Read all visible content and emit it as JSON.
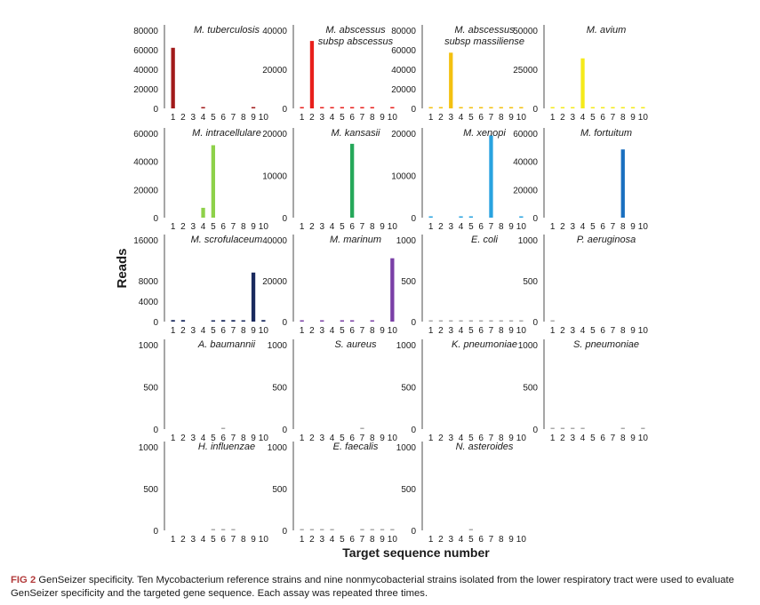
{
  "figure": {
    "ylabel": "Reads",
    "xlabel": "Target sequence number",
    "caption_label": "FIG 2",
    "caption_text": "GenSeizer specificity. Ten Mycobacterium reference strains and nine nonmycobacterial strains isolated from the lower respiratory tract were used to evaluate GenSeizer specificity and the targeted gene sequence. Each assay was repeated three times."
  },
  "chart_data": [
    {
      "type": "bar",
      "title": [
        "M. tuberculosis"
      ],
      "categories": [
        "1",
        "2",
        "3",
        "4",
        "5",
        "6",
        "7",
        "8",
        "9",
        "10"
      ],
      "values": [
        62000,
        0,
        0,
        1200,
        0,
        0,
        0,
        0,
        1000,
        0
      ],
      "ylim": [
        0,
        80000
      ],
      "yticks": [
        "0",
        "20000",
        "40000",
        "60000",
        "80000"
      ],
      "color": "#a11a1a"
    },
    {
      "type": "bar",
      "title": [
        "M. abscessus",
        "subsp abscessus"
      ],
      "categories": [
        "1",
        "2",
        "3",
        "4",
        "5",
        "6",
        "7",
        "8",
        "9",
        "10"
      ],
      "values": [
        400,
        34500,
        400,
        400,
        400,
        400,
        300,
        300,
        0,
        400
      ],
      "ylim": [
        0,
        40000
      ],
      "yticks": [
        "0",
        "20000",
        "40000"
      ],
      "color": "#e8201c"
    },
    {
      "type": "bar",
      "title": [
        "M. abscessus",
        "subsp massiliense"
      ],
      "categories": [
        "1",
        "2",
        "3",
        "4",
        "5",
        "6",
        "7",
        "8",
        "9",
        "10"
      ],
      "values": [
        300,
        300,
        57000,
        300,
        300,
        300,
        300,
        300,
        300,
        300
      ],
      "ylim": [
        0,
        80000
      ],
      "yticks": [
        "0",
        "20000",
        "40000",
        "60000",
        "80000"
      ],
      "color": "#f3c010"
    },
    {
      "type": "bar",
      "title": [
        "M. avium"
      ],
      "categories": [
        "1",
        "2",
        "3",
        "4",
        "5",
        "6",
        "7",
        "8",
        "9",
        "10"
      ],
      "values": [
        200,
        200,
        200,
        32000,
        200,
        200,
        200,
        200,
        200,
        200
      ],
      "ylim": [
        0,
        50000
      ],
      "yticks": [
        "0",
        "25000",
        "50000"
      ],
      "color": "#f5ea1a"
    },
    {
      "type": "bar",
      "title": [
        "M. intracellulare"
      ],
      "categories": [
        "1",
        "2",
        "3",
        "4",
        "5",
        "6",
        "7",
        "8",
        "9",
        "10"
      ],
      "values": [
        0,
        0,
        0,
        7000,
        51500,
        0,
        0,
        0,
        0,
        0
      ],
      "ylim": [
        0,
        60000
      ],
      "yticks": [
        "0",
        "20000",
        "40000",
        "60000"
      ],
      "color": "#8ed14a"
    },
    {
      "type": "bar",
      "title": [
        "M. kansasii"
      ],
      "categories": [
        "1",
        "2",
        "3",
        "4",
        "5",
        "6",
        "7",
        "8",
        "9",
        "10"
      ],
      "values": [
        0,
        0,
        0,
        0,
        0,
        17500,
        0,
        0,
        0,
        0
      ],
      "ylim": [
        0,
        20000
      ],
      "yticks": [
        "0",
        "10000",
        "20000"
      ],
      "color": "#26a85a"
    },
    {
      "type": "bar",
      "title": [
        "M. xenopi"
      ],
      "categories": [
        "1",
        "2",
        "3",
        "4",
        "5",
        "6",
        "7",
        "8",
        "9",
        "10"
      ],
      "values": [
        300,
        0,
        0,
        200,
        200,
        0,
        19500,
        0,
        0,
        200
      ],
      "ylim": [
        0,
        20000
      ],
      "yticks": [
        "0",
        "10000",
        "20000"
      ],
      "color": "#29a3e0"
    },
    {
      "type": "bar",
      "title": [
        "M. fortuitum"
      ],
      "categories": [
        "1",
        "2",
        "3",
        "4",
        "5",
        "6",
        "7",
        "8",
        "9",
        "10"
      ],
      "values": [
        0,
        0,
        0,
        0,
        0,
        0,
        0,
        48500,
        0,
        0
      ],
      "ylim": [
        0,
        60000
      ],
      "yticks": [
        "0",
        "20000",
        "40000",
        "60000"
      ],
      "color": "#1a6fbf"
    },
    {
      "type": "bar",
      "title": [
        "M. scrofulaceum"
      ],
      "categories": [
        "1",
        "2",
        "3",
        "4",
        "5",
        "6",
        "7",
        "8",
        "9",
        "10"
      ],
      "values": [
        300,
        300,
        0,
        0,
        200,
        300,
        300,
        200,
        9600,
        300
      ],
      "ylim": [
        0,
        16000
      ],
      "yticks": [
        "0",
        "4000",
        "8000",
        "16000"
      ],
      "color": "#1a2a5e"
    },
    {
      "type": "bar",
      "title": [
        "M. marinum"
      ],
      "categories": [
        "1",
        "2",
        "3",
        "4",
        "5",
        "6",
        "7",
        "8",
        "9",
        "10"
      ],
      "values": [
        400,
        0,
        400,
        0,
        400,
        400,
        0,
        300,
        0,
        31000
      ],
      "ylim": [
        0,
        40000
      ],
      "yticks": [
        "0",
        "20000",
        "40000"
      ],
      "color": "#7a3fa6"
    },
    {
      "type": "bar",
      "title": [
        "E. coli"
      ],
      "categories": [
        "1",
        "2",
        "3",
        "4",
        "5",
        "6",
        "7",
        "8",
        "9",
        "10"
      ],
      "values": [
        15,
        15,
        15,
        15,
        15,
        15,
        15,
        15,
        15,
        15
      ],
      "ylim": [
        0,
        1000
      ],
      "yticks": [
        "0",
        "500",
        "1000"
      ],
      "color": "#aaaaaa"
    },
    {
      "type": "bar",
      "title": [
        "P. aeruginosa"
      ],
      "categories": [
        "1",
        "2",
        "3",
        "4",
        "5",
        "6",
        "7",
        "8",
        "9",
        "10"
      ],
      "values": [
        10,
        0,
        0,
        0,
        0,
        0,
        0,
        0,
        0,
        0
      ],
      "ylim": [
        0,
        1000
      ],
      "yticks": [
        "0",
        "500",
        "1000"
      ],
      "color": "#aaaaaa"
    },
    {
      "type": "bar",
      "title": [
        "A. baumannii"
      ],
      "categories": [
        "1",
        "2",
        "3",
        "4",
        "5",
        "6",
        "7",
        "8",
        "9",
        "10"
      ],
      "values": [
        0,
        0,
        0,
        0,
        0,
        5,
        0,
        0,
        0,
        0
      ],
      "ylim": [
        0,
        1000
      ],
      "yticks": [
        "0",
        "500",
        "1000"
      ],
      "color": "#aaaaaa"
    },
    {
      "type": "bar",
      "title": [
        "S. aureus"
      ],
      "categories": [
        "1",
        "2",
        "3",
        "4",
        "5",
        "6",
        "7",
        "8",
        "9",
        "10"
      ],
      "values": [
        0,
        0,
        0,
        0,
        0,
        0,
        5,
        0,
        0,
        0
      ],
      "ylim": [
        0,
        1000
      ],
      "yticks": [
        "0",
        "500",
        "1000"
      ],
      "color": "#aaaaaa"
    },
    {
      "type": "bar",
      "title": [
        "K. pneumoniae"
      ],
      "categories": [
        "1",
        "2",
        "3",
        "4",
        "5",
        "6",
        "7",
        "8",
        "9",
        "10"
      ],
      "values": [
        0,
        0,
        0,
        0,
        0,
        0,
        0,
        0,
        0,
        0
      ],
      "ylim": [
        0,
        1000
      ],
      "yticks": [
        "0",
        "500",
        "1000"
      ],
      "color": "#aaaaaa"
    },
    {
      "type": "bar",
      "title": [
        "S. pneumoniae"
      ],
      "categories": [
        "1",
        "2",
        "3",
        "4",
        "5",
        "6",
        "7",
        "8",
        "9",
        "10"
      ],
      "values": [
        15,
        15,
        15,
        15,
        0,
        0,
        0,
        10,
        0,
        10
      ],
      "ylim": [
        0,
        1000
      ],
      "yticks": [
        "0",
        "500",
        "1000"
      ],
      "color": "#aaaaaa"
    },
    {
      "type": "bar",
      "title": [
        "H. influenzae"
      ],
      "categories": [
        "1",
        "2",
        "3",
        "4",
        "5",
        "6",
        "7",
        "8",
        "9",
        "10"
      ],
      "values": [
        0,
        0,
        0,
        0,
        5,
        10,
        5,
        0,
        0,
        0
      ],
      "ylim": [
        0,
        1000
      ],
      "yticks": [
        "0",
        "500",
        "1000"
      ],
      "color": "#aaaaaa"
    },
    {
      "type": "bar",
      "title": [
        "E. faecalis"
      ],
      "categories": [
        "1",
        "2",
        "3",
        "4",
        "5",
        "6",
        "7",
        "8",
        "9",
        "10"
      ],
      "values": [
        15,
        5,
        5,
        5,
        0,
        0,
        5,
        5,
        5,
        5
      ],
      "ylim": [
        0,
        1000
      ],
      "yticks": [
        "0",
        "500",
        "1000"
      ],
      "color": "#aaaaaa"
    },
    {
      "type": "bar",
      "title": [
        "N. asteroides"
      ],
      "categories": [
        "1",
        "2",
        "3",
        "4",
        "5",
        "6",
        "7",
        "8",
        "9",
        "10"
      ],
      "values": [
        0,
        0,
        0,
        0,
        15,
        0,
        0,
        0,
        0,
        0
      ],
      "ylim": [
        0,
        1000
      ],
      "yticks": [
        "0",
        "500",
        "1000"
      ],
      "color": "#aaaaaa"
    }
  ]
}
